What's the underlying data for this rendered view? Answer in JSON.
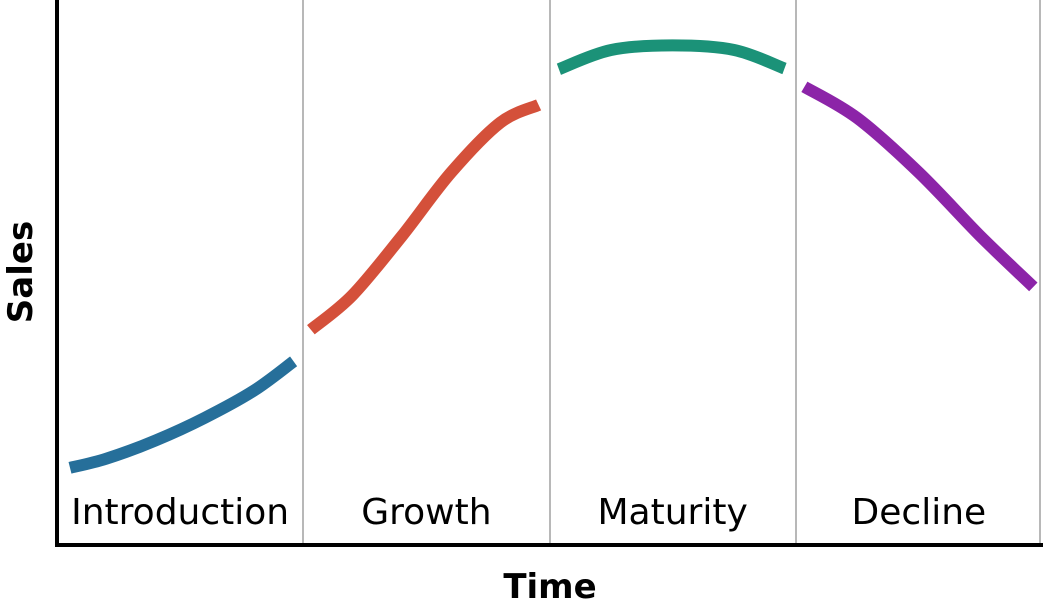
{
  "chart_data": {
    "type": "line",
    "title": "",
    "xlabel": "Time",
    "ylabel": "Sales",
    "grid": false,
    "ylim": [
      0,
      100
    ],
    "stages": [
      "Introduction",
      "Growth",
      "Maturity",
      "Decline"
    ],
    "series": [
      {
        "stage": "Introduction",
        "color": "#266f9a",
        "x": [
          0.0,
          0.2,
          0.4,
          0.6,
          0.8,
          1.0
        ],
        "y": [
          17,
          19,
          23,
          28,
          34,
          42
        ]
      },
      {
        "stage": "Growth",
        "color": "#d4503a",
        "x": [
          1.0,
          1.2,
          1.4,
          1.6,
          1.8,
          2.0
        ],
        "y": [
          46,
          55,
          68,
          82,
          93,
          98
        ]
      },
      {
        "stage": "Maturity",
        "color": "#1b9278",
        "x": [
          2.0,
          2.25,
          2.5,
          2.75,
          3.0
        ],
        "y": [
          104,
          109,
          110,
          109,
          104
        ]
      },
      {
        "stage": "Decline",
        "color": "#8c24a8",
        "x": [
          3.0,
          3.25,
          3.5,
          3.75,
          4.0
        ],
        "y": [
          102,
          94,
          82,
          68,
          55
        ]
      }
    ]
  }
}
